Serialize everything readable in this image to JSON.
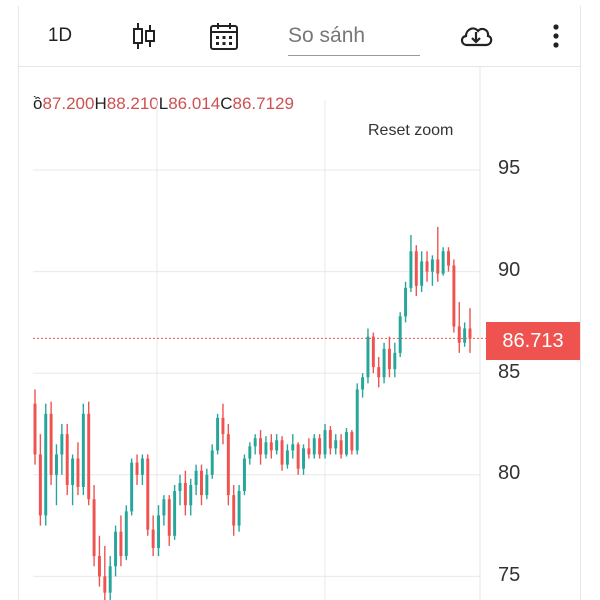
{
  "toolbar": {
    "timeframe_label": "1D",
    "candle_icon": "candlestick-icon",
    "calendar_icon": "calendar-icon",
    "compare_placeholder": "So sánh",
    "download_icon": "cloud-download-icon",
    "more_icon": "more-vertical-icon"
  },
  "ohlc": {
    "o_label": "ồ",
    "o_value": "87.200",
    "h_label": "H",
    "h_value": "88.210",
    "l_label": "L",
    "l_value": "86.014",
    "c_label": "C",
    "c_value": "86.7129"
  },
  "reset_zoom_label": "Reset zoom",
  "last_price_label": "86.713",
  "colors": {
    "up": "#26a69a",
    "down": "#ef5350",
    "price_line": "#ef5350",
    "grid": "#e8e8e8"
  },
  "chart_data": {
    "type": "candlestick",
    "y_ticks": [
      "95",
      "90",
      "85",
      "80",
      "75"
    ],
    "ylim": [
      73.7,
      97.5
    ],
    "last_price": 86.713,
    "ohlc": [
      [
        83.5,
        84.2,
        80.5,
        81.0
      ],
      [
        81.0,
        82.0,
        77.5,
        78.0
      ],
      [
        78.0,
        83.5,
        77.5,
        83.0
      ],
      [
        83.0,
        83.6,
        79.5,
        80.0
      ],
      [
        80.0,
        81.5,
        78.5,
        81.0
      ],
      [
        81.0,
        82.5,
        80.0,
        82.0
      ],
      [
        82.0,
        82.5,
        79.0,
        79.5
      ],
      [
        79.5,
        81.0,
        78.5,
        80.8
      ],
      [
        80.8,
        81.6,
        79.0,
        79.4
      ],
      [
        79.4,
        83.5,
        79.0,
        83.0
      ],
      [
        83.0,
        83.6,
        78.5,
        78.8
      ],
      [
        78.8,
        79.5,
        75.5,
        76.0
      ],
      [
        76.0,
        77.0,
        74.5,
        75.0
      ],
      [
        75.0,
        76.5,
        73.8,
        74.2
      ],
      [
        74.2,
        76.0,
        73.7,
        75.5
      ],
      [
        75.5,
        77.5,
        75.0,
        77.2
      ],
      [
        77.2,
        78.0,
        75.5,
        76.0
      ],
      [
        76.0,
        78.5,
        75.8,
        78.2
      ],
      [
        78.2,
        80.8,
        78.0,
        80.6
      ],
      [
        80.6,
        81.0,
        79.5,
        80.0
      ],
      [
        80.0,
        81.0,
        79.5,
        80.8
      ],
      [
        80.8,
        81.0,
        77.0,
        77.3
      ],
      [
        77.3,
        78.0,
        76.0,
        76.4
      ],
      [
        76.4,
        78.5,
        76.0,
        78.0
      ],
      [
        78.0,
        79.0,
        77.5,
        78.8
      ],
      [
        78.8,
        79.0,
        76.5,
        77.0
      ],
      [
        77.0,
        79.5,
        76.8,
        79.2
      ],
      [
        79.2,
        80.0,
        78.5,
        79.6
      ],
      [
        79.6,
        80.2,
        78.0,
        78.5
      ],
      [
        78.5,
        79.8,
        78.0,
        79.5
      ],
      [
        79.5,
        80.5,
        79.0,
        80.2
      ],
      [
        80.2,
        80.5,
        78.5,
        79.0
      ],
      [
        79.0,
        80.3,
        78.8,
        80.0
      ],
      [
        80.0,
        81.5,
        79.8,
        81.2
      ],
      [
        81.2,
        83.0,
        81.0,
        82.8
      ],
      [
        82.8,
        83.5,
        81.5,
        82.0
      ],
      [
        82.0,
        82.5,
        78.5,
        79.0
      ],
      [
        79.0,
        79.5,
        77.0,
        77.5
      ],
      [
        77.5,
        79.5,
        77.2,
        79.2
      ],
      [
        79.2,
        81.0,
        79.0,
        80.8
      ],
      [
        80.8,
        81.6,
        80.5,
        81.4
      ],
      [
        81.4,
        82.0,
        81.0,
        81.8
      ],
      [
        81.8,
        82.2,
        80.5,
        81.0
      ],
      [
        81.0,
        81.9,
        80.8,
        81.6
      ],
      [
        81.6,
        82.0,
        80.8,
        81.2
      ],
      [
        81.2,
        82.0,
        81.0,
        81.7
      ],
      [
        81.7,
        81.9,
        80.2,
        80.5
      ],
      [
        80.5,
        81.5,
        80.3,
        81.2
      ],
      [
        81.2,
        82.0,
        80.8,
        81.5
      ],
      [
        81.5,
        81.6,
        80.0,
        80.3
      ],
      [
        80.3,
        81.5,
        80.0,
        81.3
      ],
      [
        81.3,
        81.8,
        80.8,
        81.0
      ],
      [
        81.0,
        82.0,
        80.8,
        81.8
      ],
      [
        81.8,
        82.0,
        80.8,
        81.0
      ],
      [
        81.0,
        82.5,
        80.8,
        82.2
      ],
      [
        82.2,
        82.4,
        81.0,
        81.3
      ],
      [
        81.3,
        82.0,
        81.0,
        81.7
      ],
      [
        81.7,
        82.0,
        80.8,
        81.0
      ],
      [
        81.0,
        82.3,
        80.9,
        82.1
      ],
      [
        82.1,
        82.2,
        81.0,
        81.2
      ],
      [
        81.2,
        84.5,
        81.0,
        84.2
      ],
      [
        84.2,
        85.0,
        83.8,
        84.8
      ],
      [
        84.8,
        87.2,
        84.5,
        86.8
      ],
      [
        86.8,
        87.0,
        85.0,
        85.3
      ],
      [
        85.3,
        85.8,
        84.3,
        84.8
      ],
      [
        84.8,
        86.5,
        84.5,
        86.2
      ],
      [
        86.2,
        86.8,
        84.8,
        85.2
      ],
      [
        85.2,
        86.5,
        84.8,
        86.0
      ],
      [
        86.0,
        88.0,
        85.8,
        87.8
      ],
      [
        87.8,
        89.5,
        87.5,
        89.2
      ],
      [
        89.2,
        91.8,
        89.0,
        91.0
      ],
      [
        91.0,
        91.3,
        88.8,
        89.3
      ],
      [
        89.3,
        91.0,
        89.0,
        90.5
      ],
      [
        90.5,
        91.0,
        89.5,
        90.0
      ],
      [
        90.0,
        90.8,
        89.3,
        90.6
      ],
      [
        90.6,
        92.2,
        89.5,
        89.9
      ],
      [
        89.9,
        91.2,
        89.8,
        91.0
      ],
      [
        91.0,
        91.2,
        90.0,
        90.3
      ],
      [
        90.3,
        90.6,
        87.0,
        87.3
      ],
      [
        87.3,
        88.5,
        86.0,
        86.5
      ],
      [
        86.5,
        87.5,
        86.3,
        87.2
      ],
      [
        87.2,
        88.2,
        86.0,
        86.7
      ]
    ]
  }
}
